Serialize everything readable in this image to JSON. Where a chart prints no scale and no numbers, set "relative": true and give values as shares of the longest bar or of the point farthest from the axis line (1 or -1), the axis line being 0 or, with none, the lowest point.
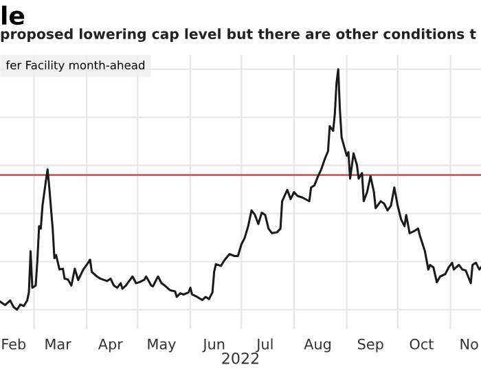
{
  "chart_data": {
    "type": "line",
    "title": "le",
    "subtitle": "proposed lowering cap level but there are other conditions t",
    "xlabel": "2022",
    "relative": true,
    "grid": true,
    "legend": "top left",
    "xlim": [
      "2022-02-09",
      "2022-11-19"
    ],
    "xticks": [
      {
        "value": "2022-02-17",
        "label": "Feb"
      },
      {
        "value": "2022-03-01",
        "label": null
      },
      {
        "value": "2022-03-15",
        "label": "Mar"
      },
      {
        "value": "2022-04-01",
        "label": null
      },
      {
        "value": "2022-04-15",
        "label": "Apr"
      },
      {
        "value": "2022-05-01",
        "label": null
      },
      {
        "value": "2022-05-15",
        "label": "May"
      },
      {
        "value": "2022-06-01",
        "label": null
      },
      {
        "value": "2022-06-15",
        "label": "Jun"
      },
      {
        "value": "2022-07-01",
        "label": null
      },
      {
        "value": "2022-07-15",
        "label": "Jul"
      },
      {
        "value": "2022-08-01",
        "label": null
      },
      {
        "value": "2022-08-15",
        "label": "Aug"
      },
      {
        "value": "2022-09-01",
        "label": null
      },
      {
        "value": "2022-09-15",
        "label": "Sep"
      },
      {
        "value": "2022-10-01",
        "label": null
      },
      {
        "value": "2022-10-15",
        "label": "Oct"
      },
      {
        "value": "2022-11-01",
        "label": null
      },
      {
        "value": "2022-11-12",
        "label": "No"
      }
    ],
    "ref_lines": [
      {
        "axis": "y",
        "value": 0.56,
        "label": null,
        "color": "#d9535f"
      }
    ],
    "x": [
      "2022-02-09",
      "2022-02-12",
      "2022-02-15",
      "2022-02-17",
      "2022-02-19",
      "2022-02-21",
      "2022-02-23",
      "2022-02-25",
      "2022-02-26",
      "2022-02-27",
      "2022-02-28",
      "2022-03-02",
      "2022-03-03",
      "2022-03-04",
      "2022-03-05",
      "2022-03-06",
      "2022-03-08",
      "2022-03-09",
      "2022-03-10",
      "2022-03-12",
      "2022-03-13",
      "2022-03-14",
      "2022-03-16",
      "2022-03-18",
      "2022-03-19",
      "2022-03-21",
      "2022-03-23",
      "2022-03-25",
      "2022-03-27",
      "2022-03-30",
      "2022-04-01",
      "2022-04-03",
      "2022-04-04",
      "2022-04-07",
      "2022-04-09",
      "2022-04-13",
      "2022-04-15",
      "2022-04-17",
      "2022-04-19",
      "2022-04-21",
      "2022-04-22",
      "2022-04-24",
      "2022-04-26",
      "2022-04-28",
      "2022-04-30",
      "2022-05-02",
      "2022-05-05",
      "2022-05-06",
      "2022-05-09",
      "2022-05-10",
      "2022-05-12",
      "2022-05-13",
      "2022-05-15",
      "2022-05-17",
      "2022-05-20",
      "2022-05-23",
      "2022-05-24",
      "2022-05-26",
      "2022-05-28",
      "2022-05-31",
      "2022-06-01",
      "2022-06-02",
      "2022-06-05",
      "2022-06-08",
      "2022-06-10",
      "2022-06-12",
      "2022-06-14",
      "2022-06-15",
      "2022-06-16",
      "2022-06-19",
      "2022-06-21",
      "2022-06-24",
      "2022-06-27",
      "2022-06-29",
      "2022-07-01",
      "2022-07-03",
      "2022-07-05",
      "2022-07-07",
      "2022-07-09",
      "2022-07-11",
      "2022-07-13",
      "2022-07-15",
      "2022-07-17",
      "2022-07-19",
      "2022-07-22",
      "2022-07-24",
      "2022-07-25",
      "2022-07-28",
      "2022-07-30",
      "2022-08-01",
      "2022-08-03",
      "2022-08-06",
      "2022-08-10",
      "2022-08-11",
      "2022-08-13",
      "2022-08-15",
      "2022-08-17",
      "2022-08-19",
      "2022-08-21",
      "2022-08-22",
      "2022-08-24",
      "2022-08-25",
      "2022-08-26",
      "2022-08-27",
      "2022-08-28",
      "2022-08-29",
      "2022-09-01",
      "2022-09-02",
      "2022-09-03",
      "2022-09-05",
      "2022-09-07",
      "2022-09-08",
      "2022-09-10",
      "2022-09-11",
      "2022-09-13",
      "2022-09-15",
      "2022-09-17",
      "2022-09-18",
      "2022-09-21",
      "2022-09-23",
      "2022-09-25",
      "2022-09-27",
      "2022-09-29",
      "2022-10-01",
      "2022-10-03",
      "2022-10-05",
      "2022-10-06",
      "2022-10-08",
      "2022-10-11",
      "2022-10-13",
      "2022-10-14",
      "2022-10-17",
      "2022-10-19",
      "2022-10-20",
      "2022-10-22",
      "2022-10-24",
      "2022-10-26",
      "2022-10-29",
      "2022-10-31",
      "2022-11-02",
      "2022-11-03",
      "2022-11-06",
      "2022-11-08",
      "2022-11-10",
      "2022-11-13",
      "2022-11-14",
      "2022-11-16",
      "2022-11-18",
      "2022-11-19"
    ],
    "series": [
      {
        "name": "fer Facility month-ahead",
        "color": "#1a1a1a",
        "values": [
          0.034,
          0.019,
          0.038,
          0.011,
          0,
          0.021,
          0.015,
          0.038,
          0.072,
          0.243,
          0.091,
          0.1,
          0.205,
          0.347,
          0.337,
          0.432,
          0.536,
          0.583,
          0.508,
          0.337,
          0.214,
          0.227,
          0.167,
          0.17,
          0.129,
          0.125,
          0.1,
          0.17,
          0.123,
          0.167,
          0.186,
          0.208,
          0.157,
          0.138,
          0.129,
          0.119,
          0.129,
          0.1,
          0.091,
          0.11,
          0.087,
          0.1,
          0.119,
          0.138,
          0.11,
          0.114,
          0.125,
          0.138,
          0.1,
          0.097,
          0.125,
          0.138,
          0.11,
          0.1,
          0.081,
          0.076,
          0.053,
          0.068,
          0.063,
          0.072,
          0.091,
          0.063,
          0.053,
          0.04,
          0.053,
          0.044,
          0.072,
          0.157,
          0.189,
          0.182,
          0.205,
          0.231,
          0.223,
          0.223,
          0.271,
          0.299,
          0.347,
          0.413,
          0.394,
          0.356,
          0.403,
          0.394,
          0.337,
          0.318,
          0.322,
          0.337,
          0.451,
          0.498,
          0.46,
          0.489,
          0.473,
          0.466,
          0.451,
          0.508,
          0.517,
          0.553,
          0.583,
          0.625,
          0.659,
          0.763,
          0.744,
          0.814,
          0.943,
          1.0,
          0.83,
          0.716,
          0.64,
          0.655,
          0.545,
          0.65,
          0.602,
          0.545,
          0.568,
          0.451,
          0.489,
          0.555,
          0.489,
          0.422,
          0.451,
          0.441,
          0.413,
          0.432,
          0.508,
          0.432,
          0.375,
          0.347,
          0.394,
          0.318,
          0.328,
          0.337,
          0.309,
          0.243,
          0.167,
          0.186,
          0.176,
          0.114,
          0.138,
          0.148,
          0.176,
          0.195,
          0.167,
          0.186,
          0.167,
          0.163,
          0.11,
          0.186,
          0.195,
          0.167,
          0.176
        ]
      }
    ]
  }
}
